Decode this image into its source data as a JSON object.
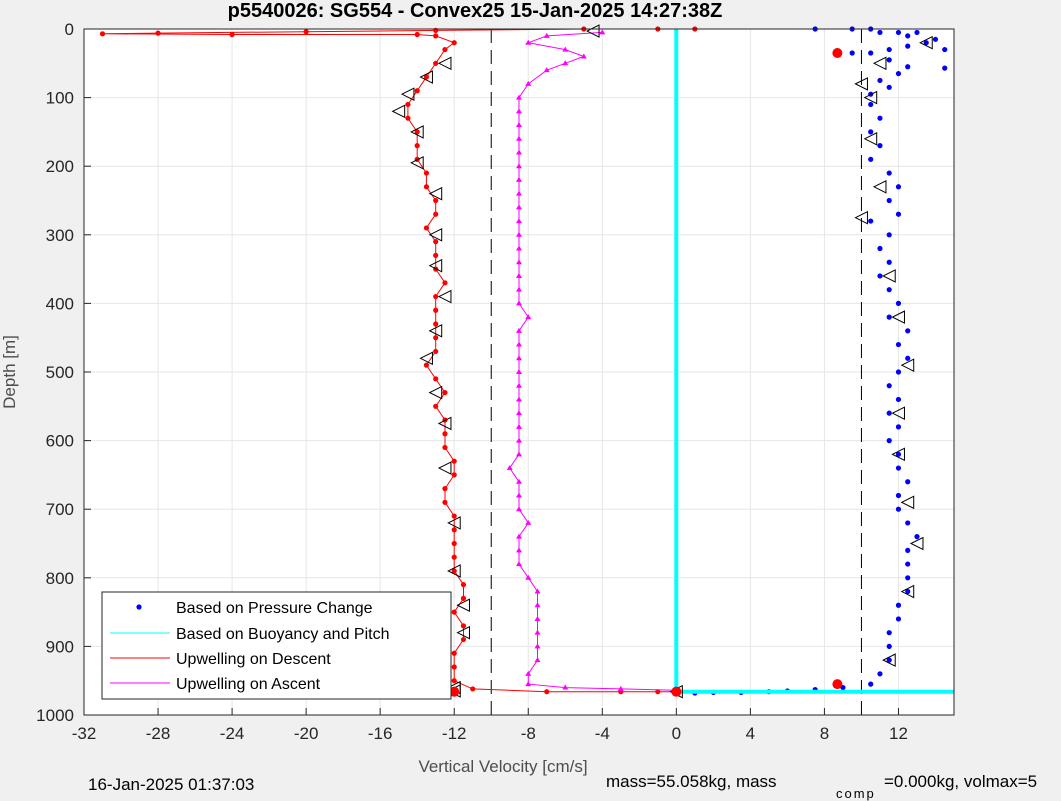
{
  "chart_data": {
    "type": "scatter",
    "title": "p5540026: SG554 - Convex25 15-Jan-2025 14:27:38Z",
    "xlabel": "Vertical Velocity [cm/s]",
    "ylabel": "Depth [m]",
    "xlim": [
      -32,
      15
    ],
    "ylim": [
      0,
      1000
    ],
    "y_reversed": true,
    "grid": true,
    "xticks": [
      -32,
      -28,
      -24,
      -20,
      -16,
      -12,
      -8,
      -4,
      0,
      4,
      8,
      12
    ],
    "xtick_labels": [
      "-32",
      "-28",
      "-24",
      "-20",
      "-16",
      "-12",
      "-8",
      "-4",
      "0",
      "4",
      "8",
      "12"
    ],
    "yticks": [
      0,
      100,
      200,
      300,
      400,
      500,
      600,
      700,
      800,
      900,
      1000
    ],
    "ytick_labels": [
      "0",
      "100",
      "200",
      "300",
      "400",
      "500",
      "600",
      "700",
      "800",
      "900",
      "1000"
    ],
    "reference_lines": [
      -10,
      10
    ],
    "legend_position": "bottom-left",
    "series": [
      {
        "name": "Based on Pressure Change",
        "color": "#0000ff",
        "marker": "dot",
        "points": [
          [
            7.5,
            0
          ],
          [
            9.5,
            0
          ],
          [
            10.5,
            0
          ],
          [
            11,
            5
          ],
          [
            12,
            5
          ],
          [
            13,
            5
          ],
          [
            12.5,
            10
          ],
          [
            14,
            15
          ],
          [
            13.5,
            20
          ],
          [
            12.5,
            25
          ],
          [
            11.5,
            30
          ],
          [
            14.5,
            30
          ],
          [
            10.5,
            35
          ],
          [
            9.5,
            35
          ],
          [
            11.5,
            45
          ],
          [
            12.5,
            55
          ],
          [
            14.5,
            57
          ],
          [
            12,
            65
          ],
          [
            11,
            75
          ],
          [
            11.5,
            85
          ],
          [
            10.5,
            95
          ],
          [
            10.5,
            110
          ],
          [
            11,
            130
          ],
          [
            10.5,
            150
          ],
          [
            11,
            170
          ],
          [
            10.5,
            190
          ],
          [
            11.5,
            210
          ],
          [
            12,
            230
          ],
          [
            11.5,
            250
          ],
          [
            12,
            270
          ],
          [
            10.5,
            280
          ],
          [
            11.5,
            300
          ],
          [
            11,
            320
          ],
          [
            11.5,
            340
          ],
          [
            11,
            360
          ],
          [
            11.5,
            380
          ],
          [
            12,
            400
          ],
          [
            11.5,
            420
          ],
          [
            12.5,
            440
          ],
          [
            12,
            460
          ],
          [
            12.5,
            480
          ],
          [
            12,
            500
          ],
          [
            11.5,
            520
          ],
          [
            12,
            540
          ],
          [
            11.5,
            560
          ],
          [
            12,
            580
          ],
          [
            11.5,
            600
          ],
          [
            12,
            620
          ],
          [
            12,
            640
          ],
          [
            12.5,
            660
          ],
          [
            12,
            680
          ],
          [
            12,
            700
          ],
          [
            12.5,
            720
          ],
          [
            13,
            740
          ],
          [
            12.5,
            760
          ],
          [
            12.5,
            780
          ],
          [
            12.5,
            800
          ],
          [
            12.5,
            820
          ],
          [
            12,
            840
          ],
          [
            12,
            860
          ],
          [
            11.5,
            880
          ],
          [
            11.5,
            900
          ],
          [
            11.5,
            920
          ],
          [
            11,
            940
          ],
          [
            10.5,
            955
          ],
          [
            9,
            960
          ],
          [
            7.5,
            963
          ],
          [
            6,
            965
          ],
          [
            5,
            966
          ],
          [
            3.5,
            967
          ],
          [
            2,
            967
          ],
          [
            1,
            968
          ]
        ]
      },
      {
        "name": "Based on Buoyancy and Pitch",
        "color": "#00ffff",
        "marker": "line",
        "points": [
          [
            0,
            0
          ],
          [
            0,
            100
          ],
          [
            0,
            200
          ],
          [
            0,
            300
          ],
          [
            0,
            400
          ],
          [
            0,
            500
          ],
          [
            0,
            600
          ],
          [
            0,
            700
          ],
          [
            0,
            800
          ],
          [
            0,
            900
          ],
          [
            0,
            966
          ],
          [
            5,
            966
          ],
          [
            10,
            966
          ],
          [
            15,
            966
          ]
        ]
      },
      {
        "name": "Upwelling on Descent",
        "color": "#ff0000",
        "marker": "dot-line",
        "points": [
          [
            1,
            0
          ],
          [
            -1,
            0
          ],
          [
            -5,
            0
          ],
          [
            -13,
            2
          ],
          [
            -20,
            4
          ],
          [
            -28,
            6
          ],
          [
            -31,
            7
          ],
          [
            -24,
            8
          ],
          [
            -14,
            8
          ],
          [
            -13,
            10
          ],
          [
            -12,
            20
          ],
          [
            -12.5,
            30
          ],
          [
            -13,
            50
          ],
          [
            -13.5,
            70
          ],
          [
            -14,
            90
          ],
          [
            -14.5,
            110
          ],
          [
            -14.5,
            130
          ],
          [
            -14,
            150
          ],
          [
            -14,
            170
          ],
          [
            -14,
            190
          ],
          [
            -13.5,
            210
          ],
          [
            -13.5,
            230
          ],
          [
            -13,
            250
          ],
          [
            -13,
            270
          ],
          [
            -13.5,
            290
          ],
          [
            -13,
            310
          ],
          [
            -13,
            330
          ],
          [
            -13,
            350
          ],
          [
            -12.5,
            370
          ],
          [
            -13,
            390
          ],
          [
            -13,
            410
          ],
          [
            -13,
            430
          ],
          [
            -13,
            450
          ],
          [
            -13,
            470
          ],
          [
            -13.5,
            490
          ],
          [
            -13,
            510
          ],
          [
            -12.5,
            530
          ],
          [
            -13,
            550
          ],
          [
            -12.5,
            570
          ],
          [
            -12.5,
            590
          ],
          [
            -12.5,
            610
          ],
          [
            -12,
            630
          ],
          [
            -12,
            650
          ],
          [
            -12.5,
            670
          ],
          [
            -12.5,
            690
          ],
          [
            -12,
            710
          ],
          [
            -12,
            730
          ],
          [
            -12,
            750
          ],
          [
            -12,
            770
          ],
          [
            -12,
            790
          ],
          [
            -11.5,
            810
          ],
          [
            -11.5,
            830
          ],
          [
            -12,
            850
          ],
          [
            -11.5,
            870
          ],
          [
            -11.5,
            890
          ],
          [
            -12,
            910
          ],
          [
            -12,
            930
          ],
          [
            -12,
            950
          ],
          [
            -11,
            962
          ],
          [
            -7,
            966
          ],
          [
            -3,
            966
          ],
          [
            -1,
            966
          ],
          [
            0,
            966
          ]
        ]
      },
      {
        "name": "Upwelling on Ascent",
        "color": "#ff00ff",
        "marker": "triangle-line",
        "points": [
          [
            0,
            964
          ],
          [
            -3,
            962
          ],
          [
            -6,
            960
          ],
          [
            -8,
            955
          ],
          [
            -8,
            940
          ],
          [
            -7.5,
            920
          ],
          [
            -7.5,
            900
          ],
          [
            -7.5,
            880
          ],
          [
            -7.5,
            860
          ],
          [
            -7.5,
            840
          ],
          [
            -7.5,
            820
          ],
          [
            -8,
            800
          ],
          [
            -8.5,
            780
          ],
          [
            -8.5,
            760
          ],
          [
            -8.5,
            740
          ],
          [
            -8,
            720
          ],
          [
            -8.5,
            700
          ],
          [
            -8.5,
            680
          ],
          [
            -8.5,
            660
          ],
          [
            -9,
            640
          ],
          [
            -8.5,
            620
          ],
          [
            -8.5,
            600
          ],
          [
            -8.5,
            580
          ],
          [
            -8.5,
            560
          ],
          [
            -8.5,
            540
          ],
          [
            -8.5,
            520
          ],
          [
            -8.5,
            500
          ],
          [
            -8.5,
            480
          ],
          [
            -8.5,
            460
          ],
          [
            -8.5,
            440
          ],
          [
            -8,
            420
          ],
          [
            -8.5,
            400
          ],
          [
            -8.5,
            380
          ],
          [
            -8.5,
            360
          ],
          [
            -8.5,
            340
          ],
          [
            -8.5,
            320
          ],
          [
            -8.5,
            300
          ],
          [
            -8.5,
            280
          ],
          [
            -8.5,
            260
          ],
          [
            -8.5,
            240
          ],
          [
            -8.5,
            220
          ],
          [
            -8.5,
            200
          ],
          [
            -8.5,
            180
          ],
          [
            -8.5,
            160
          ],
          [
            -8.5,
            140
          ],
          [
            -8.5,
            120
          ],
          [
            -8.5,
            100
          ],
          [
            -8,
            80
          ],
          [
            -7,
            60
          ],
          [
            -6,
            50
          ],
          [
            -5,
            40
          ],
          [
            -6,
            30
          ],
          [
            -8,
            20
          ],
          [
            -7,
            10
          ],
          [
            -4,
            5
          ]
        ]
      },
      {
        "name": "",
        "color": "#000000",
        "marker": "open-triangle-left",
        "points": [
          [
            -4.5,
            3
          ],
          [
            -12.5,
            50
          ],
          [
            -13.5,
            70
          ],
          [
            -14.5,
            95
          ],
          [
            -15,
            120
          ],
          [
            -14,
            150
          ],
          [
            -14,
            195
          ],
          [
            -13,
            240
          ],
          [
            -13,
            300
          ],
          [
            -13,
            345
          ],
          [
            -12.5,
            390
          ],
          [
            -13,
            440
          ],
          [
            -13.5,
            480
          ],
          [
            -13,
            530
          ],
          [
            -12.5,
            575
          ],
          [
            -12.5,
            640
          ],
          [
            -12,
            720
          ],
          [
            -12,
            790
          ],
          [
            -11.5,
            840
          ],
          [
            -11.5,
            880
          ],
          [
            -12,
            960
          ],
          [
            -12,
            965
          ],
          [
            0,
            966
          ],
          [
            13.5,
            20
          ],
          [
            11,
            50
          ],
          [
            10,
            80
          ],
          [
            10.5,
            100
          ],
          [
            10.5,
            160
          ],
          [
            11,
            230
          ],
          [
            10,
            275
          ],
          [
            11.5,
            360
          ],
          [
            12,
            420
          ],
          [
            12.5,
            490
          ],
          [
            12,
            560
          ],
          [
            12,
            620
          ],
          [
            12.5,
            690
          ],
          [
            13,
            750
          ],
          [
            12.5,
            820
          ],
          [
            11.5,
            920
          ]
        ]
      },
      {
        "name": "",
        "color": "#ff0000",
        "marker": "big-dot",
        "points": [
          [
            8.7,
            35
          ],
          [
            8.7,
            955
          ],
          [
            -12,
            966
          ],
          [
            0,
            966
          ]
        ]
      }
    ]
  },
  "footer": {
    "timestamp": "16-Jan-2025 01:37:03",
    "mass_text": "mass=55.058kg, mass",
    "comp_sub": "comp",
    "mass_comp_text": "=0.000kg, volmax=5"
  }
}
